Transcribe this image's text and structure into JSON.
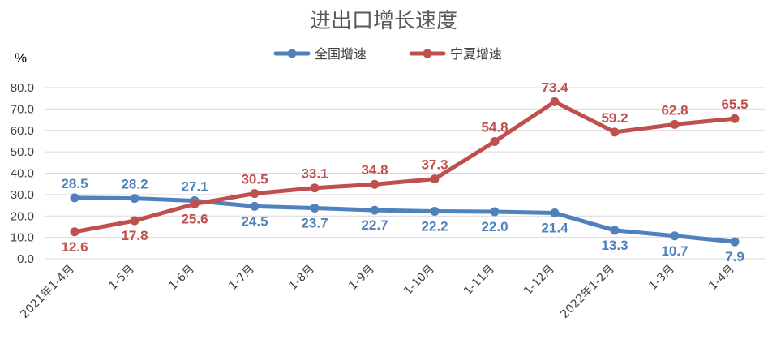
{
  "chart_data": {
    "type": "line",
    "title": "进出口增长速度",
    "ylabel": "%",
    "xlabel": "",
    "ylim": [
      0,
      80
    ],
    "yticks": [
      "0.0",
      "10.0",
      "20.0",
      "30.0",
      "40.0",
      "50.0",
      "60.0",
      "70.0",
      "80.0"
    ],
    "grid": true,
    "legend_position": "top",
    "categories": [
      "2021年1-4月",
      "1-5月",
      "1-6月",
      "1-7月",
      "1-8月",
      "1-9月",
      "1-10月",
      "1-11月",
      "1-12月",
      "2022年1-2月",
      "1-3月",
      "1-4月"
    ],
    "series": [
      {
        "name": "全国增速",
        "color": "#4f81bd",
        "label_color": "#4f81bd",
        "values": [
          28.5,
          28.2,
          27.1,
          24.5,
          23.7,
          22.7,
          22.2,
          22.0,
          21.4,
          13.3,
          10.7,
          7.9
        ],
        "labels": [
          "28.5",
          "28.2",
          "27.1",
          "24.5",
          "23.7",
          "22.7",
          "22.2",
          "22.0",
          "21.4",
          "13.3",
          "10.7",
          "7.9"
        ]
      },
      {
        "name": "宁夏增速",
        "color": "#c0504d",
        "label_color": "#c0504d",
        "values": [
          12.6,
          17.8,
          25.6,
          30.5,
          33.1,
          34.8,
          37.3,
          54.8,
          73.4,
          59.2,
          62.8,
          65.5
        ],
        "labels": [
          "12.6",
          "17.8",
          "25.6",
          "30.5",
          "33.1",
          "34.8",
          "37.3",
          "54.8",
          "73.4",
          "59.2",
          "62.8",
          "65.5"
        ]
      }
    ]
  }
}
